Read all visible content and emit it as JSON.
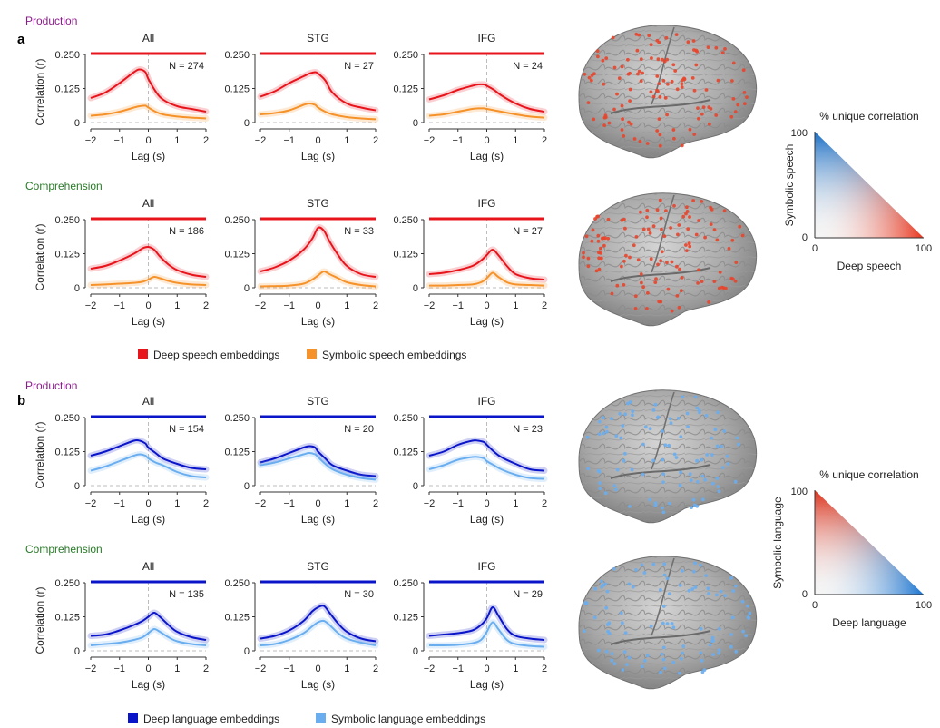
{
  "panels": [
    {
      "label": "a",
      "rows": [
        {
          "condition": "Production"
        },
        {
          "condition": "Comprehension"
        }
      ],
      "legend": [
        {
          "name": "Deep speech embeddings",
          "color": "#e8141c"
        },
        {
          "name": "Symbolic speech embeddings",
          "color": "#f5922a"
        }
      ],
      "triangle": {
        "title": "% unique correlation",
        "xlabel": "Deep speech",
        "ylabel": "Symbolic speech",
        "ticks": [
          "0",
          "100",
          "0",
          "100"
        ],
        "color_x": "#e8341c",
        "color_y": "#1a74d0"
      }
    },
    {
      "label": "b",
      "rows": [
        {
          "condition": "Production"
        },
        {
          "condition": "Comprehension"
        }
      ],
      "legend": [
        {
          "name": "Deep language embeddings",
          "color": "#0a14c8"
        },
        {
          "name": "Symbolic language embeddings",
          "color": "#6aaef0"
        }
      ],
      "triangle": {
        "title": "% unique correlation",
        "xlabel": "Deep language",
        "ylabel": "Symbolic language",
        "ticks": [
          "0",
          "100",
          "0",
          "100"
        ],
        "color_x": "#1a74d0",
        "color_y": "#e8341c"
      }
    }
  ],
  "colors": {
    "production": "#8b1a8b",
    "comprehension": "#2a7a2a"
  },
  "chart_data": [
    {
      "type": "line",
      "panel": "a",
      "condition": "Production",
      "title": "All",
      "n_label": "N = 274",
      "xlabel": "Lag (s)",
      "ylabel": "Correlation (r)",
      "xlim": [
        -2,
        2
      ],
      "ylim": [
        0,
        0.25
      ],
      "xticks": [
        "-2",
        "-1",
        "0",
        "1",
        "2"
      ],
      "yticks": [
        "0",
        "0.125",
        "0.250"
      ],
      "x": [
        -2,
        -1.5,
        -1,
        -0.5,
        -0.3,
        -0.1,
        0,
        0.25,
        0.5,
        1,
        1.5,
        2
      ],
      "series": [
        {
          "name": "Deep speech embeddings",
          "color": "#e8141c",
          "values": [
            0.09,
            0.11,
            0.145,
            0.185,
            0.195,
            0.185,
            0.16,
            0.115,
            0.085,
            0.06,
            0.05,
            0.04
          ]
        },
        {
          "name": "Symbolic speech embeddings",
          "color": "#f5922a",
          "values": [
            0.025,
            0.03,
            0.04,
            0.055,
            0.06,
            0.062,
            0.055,
            0.04,
            0.03,
            0.022,
            0.018,
            0.015
          ]
        }
      ],
      "sig_bar": {
        "from": -2,
        "to": 2,
        "color": "#e8141c"
      }
    },
    {
      "type": "line",
      "panel": "a",
      "condition": "Production",
      "title": "STG",
      "n_label": "N = 27",
      "xlabel": "Lag (s)",
      "ylabel": "",
      "xlim": [
        -2,
        2
      ],
      "ylim": [
        0,
        0.25
      ],
      "xticks": [
        "-2",
        "-1",
        "0",
        "1",
        "2"
      ],
      "yticks": [
        "0",
        "0.125",
        "0.250"
      ],
      "x": [
        -2,
        -1.5,
        -1,
        -0.5,
        -0.3,
        -0.1,
        0,
        0.25,
        0.5,
        1,
        1.5,
        2
      ],
      "series": [
        {
          "name": "Deep speech embeddings",
          "color": "#e8141c",
          "values": [
            0.095,
            0.115,
            0.145,
            0.17,
            0.18,
            0.185,
            0.18,
            0.155,
            0.11,
            0.07,
            0.055,
            0.045
          ]
        },
        {
          "name": "Symbolic speech embeddings",
          "color": "#f5922a",
          "values": [
            0.03,
            0.035,
            0.045,
            0.065,
            0.07,
            0.065,
            0.055,
            0.04,
            0.03,
            0.02,
            0.015,
            0.012
          ]
        }
      ],
      "sig_bar": {
        "from": -2,
        "to": 2,
        "color": "#e8141c"
      }
    },
    {
      "type": "line",
      "panel": "a",
      "condition": "Production",
      "title": "IFG",
      "n_label": "N = 24",
      "xlabel": "Lag (s)",
      "ylabel": "",
      "xlim": [
        -2,
        2
      ],
      "ylim": [
        0,
        0.25
      ],
      "xticks": [
        "-2",
        "-1",
        "0",
        "1",
        "2"
      ],
      "yticks": [
        "0",
        "0.125",
        "0.250"
      ],
      "x": [
        -2,
        -1.5,
        -1,
        -0.5,
        -0.3,
        -0.1,
        0,
        0.25,
        0.5,
        1,
        1.5,
        2
      ],
      "series": [
        {
          "name": "Deep speech embeddings",
          "color": "#e8141c",
          "values": [
            0.085,
            0.1,
            0.12,
            0.135,
            0.14,
            0.14,
            0.135,
            0.12,
            0.1,
            0.07,
            0.05,
            0.04
          ]
        },
        {
          "name": "Symbolic speech embeddings",
          "color": "#f5922a",
          "values": [
            0.025,
            0.03,
            0.04,
            0.05,
            0.052,
            0.052,
            0.05,
            0.045,
            0.04,
            0.03,
            0.022,
            0.018
          ]
        }
      ],
      "sig_bar": {
        "from": -2,
        "to": 2,
        "color": "#e8141c"
      }
    },
    {
      "type": "line",
      "panel": "a",
      "condition": "Comprehension",
      "title": "All",
      "n_label": "N = 186",
      "xlabel": "Lag (s)",
      "ylabel": "Correlation (r)",
      "xlim": [
        -2,
        2
      ],
      "ylim": [
        0,
        0.25
      ],
      "xticks": [
        "-2",
        "-1",
        "0",
        "1",
        "2"
      ],
      "yticks": [
        "0",
        "0.125",
        "0.250"
      ],
      "x": [
        -2,
        -1.5,
        -1,
        -0.5,
        -0.2,
        0,
        0.2,
        0.4,
        0.7,
        1,
        1.5,
        2
      ],
      "series": [
        {
          "name": "Deep speech embeddings",
          "color": "#e8141c",
          "values": [
            0.07,
            0.08,
            0.1,
            0.125,
            0.145,
            0.15,
            0.14,
            0.115,
            0.085,
            0.065,
            0.048,
            0.04
          ]
        },
        {
          "name": "Symbolic speech embeddings",
          "color": "#f5922a",
          "values": [
            0.01,
            0.012,
            0.015,
            0.018,
            0.022,
            0.03,
            0.04,
            0.035,
            0.025,
            0.018,
            0.012,
            0.01
          ]
        }
      ],
      "sig_bar": {
        "from": -2,
        "to": 2,
        "color": "#e8141c"
      }
    },
    {
      "type": "line",
      "panel": "a",
      "condition": "Comprehension",
      "title": "STG",
      "n_label": "N = 33",
      "xlabel": "Lag (s)",
      "ylabel": "",
      "xlim": [
        -2,
        2
      ],
      "ylim": [
        0,
        0.25
      ],
      "xticks": [
        "-2",
        "-1",
        "0",
        "1",
        "2"
      ],
      "yticks": [
        "0",
        "0.125",
        "0.250"
      ],
      "x": [
        -2,
        -1.5,
        -1,
        -0.5,
        -0.2,
        0,
        0.2,
        0.4,
        0.7,
        1,
        1.5,
        2
      ],
      "series": [
        {
          "name": "Deep speech embeddings",
          "color": "#e8141c",
          "values": [
            0.06,
            0.075,
            0.1,
            0.14,
            0.18,
            0.22,
            0.21,
            0.17,
            0.12,
            0.08,
            0.05,
            0.04
          ]
        },
        {
          "name": "Symbolic speech embeddings",
          "color": "#f5922a",
          "values": [
            0.005,
            0.006,
            0.008,
            0.015,
            0.03,
            0.045,
            0.06,
            0.05,
            0.035,
            0.02,
            0.01,
            0.005
          ]
        }
      ],
      "sig_bar": {
        "from": -2,
        "to": 2,
        "color": "#e8141c"
      }
    },
    {
      "type": "line",
      "panel": "a",
      "condition": "Comprehension",
      "title": "IFG",
      "n_label": "N = 27",
      "xlabel": "Lag (s)",
      "ylabel": "",
      "xlim": [
        -2,
        2
      ],
      "ylim": [
        0,
        0.25
      ],
      "xticks": [
        "-2",
        "-1",
        "0",
        "1",
        "2"
      ],
      "yticks": [
        "0",
        "0.125",
        "0.250"
      ],
      "x": [
        -2,
        -1.5,
        -1,
        -0.5,
        -0.2,
        0,
        0.2,
        0.4,
        0.7,
        1,
        1.5,
        2
      ],
      "series": [
        {
          "name": "Deep speech embeddings",
          "color": "#e8141c",
          "values": [
            0.05,
            0.055,
            0.065,
            0.08,
            0.1,
            0.12,
            0.14,
            0.12,
            0.08,
            0.05,
            0.035,
            0.03
          ]
        },
        {
          "name": "Symbolic speech embeddings",
          "color": "#f5922a",
          "values": [
            0.008,
            0.008,
            0.01,
            0.012,
            0.02,
            0.035,
            0.055,
            0.04,
            0.02,
            0.012,
            0.01,
            0.008
          ]
        }
      ],
      "sig_bar": {
        "from": -2,
        "to": 2,
        "color": "#e8141c"
      }
    },
    {
      "type": "line",
      "panel": "b",
      "condition": "Production",
      "title": "All",
      "n_label": "N = 154",
      "xlabel": "Lag (s)",
      "ylabel": "Correlation (r)",
      "xlim": [
        -2,
        2
      ],
      "ylim": [
        0,
        0.25
      ],
      "xticks": [
        "-2",
        "-1",
        "0",
        "1",
        "2"
      ],
      "yticks": [
        "0",
        "0.125",
        "0.250"
      ],
      "x": [
        -2,
        -1.5,
        -1,
        -0.5,
        -0.3,
        -0.1,
        0,
        0.25,
        0.5,
        1,
        1.5,
        2
      ],
      "series": [
        {
          "name": "Deep language embeddings",
          "color": "#0a14c8",
          "values": [
            0.11,
            0.125,
            0.145,
            0.165,
            0.165,
            0.155,
            0.14,
            0.12,
            0.1,
            0.08,
            0.065,
            0.06
          ]
        },
        {
          "name": "Symbolic language embeddings",
          "color": "#6aaef0",
          "values": [
            0.055,
            0.07,
            0.09,
            0.11,
            0.115,
            0.11,
            0.1,
            0.085,
            0.075,
            0.05,
            0.035,
            0.03
          ]
        }
      ],
      "sig_bar": {
        "from": -2,
        "to": 2,
        "color": "#0a14c8"
      }
    },
    {
      "type": "line",
      "panel": "b",
      "condition": "Production",
      "title": "STG",
      "n_label": "N = 20",
      "xlabel": "Lag (s)",
      "ylabel": "",
      "xlim": [
        -2,
        2
      ],
      "ylim": [
        0,
        0.25
      ],
      "xticks": [
        "-2",
        "-1",
        "0",
        "1",
        "2"
      ],
      "yticks": [
        "0",
        "0.125",
        "0.250"
      ],
      "x": [
        -2,
        -1.5,
        -1,
        -0.5,
        -0.3,
        -0.1,
        0,
        0.25,
        0.5,
        1,
        1.5,
        2
      ],
      "series": [
        {
          "name": "Deep language embeddings",
          "color": "#0a14c8",
          "values": [
            0.085,
            0.1,
            0.12,
            0.14,
            0.145,
            0.14,
            0.125,
            0.1,
            0.075,
            0.055,
            0.04,
            0.035
          ]
        },
        {
          "name": "Symbolic language embeddings",
          "color": "#6aaef0",
          "values": [
            0.075,
            0.085,
            0.1,
            0.115,
            0.12,
            0.115,
            0.105,
            0.08,
            0.06,
            0.04,
            0.028,
            0.022
          ]
        }
      ],
      "sig_bar": {
        "from": -2,
        "to": 2,
        "color": "#0a14c8"
      }
    },
    {
      "type": "line",
      "panel": "b",
      "condition": "Production",
      "title": "IFG",
      "n_label": "N = 23",
      "xlabel": "Lag (s)",
      "ylabel": "",
      "xlim": [
        -2,
        2
      ],
      "ylim": [
        0,
        0.25
      ],
      "xticks": [
        "-2",
        "-1",
        "0",
        "1",
        "2"
      ],
      "yticks": [
        "0",
        "0.125",
        "0.250"
      ],
      "x": [
        -2,
        -1.5,
        -1,
        -0.5,
        -0.3,
        -0.1,
        0,
        0.25,
        0.5,
        1,
        1.5,
        2
      ],
      "series": [
        {
          "name": "Deep language embeddings",
          "color": "#0a14c8",
          "values": [
            0.11,
            0.125,
            0.15,
            0.165,
            0.165,
            0.16,
            0.15,
            0.125,
            0.105,
            0.08,
            0.06,
            0.055
          ]
        },
        {
          "name": "Symbolic language embeddings",
          "color": "#6aaef0",
          "values": [
            0.06,
            0.075,
            0.095,
            0.105,
            0.105,
            0.1,
            0.09,
            0.075,
            0.06,
            0.04,
            0.028,
            0.025
          ]
        }
      ],
      "sig_bar": {
        "from": -2,
        "to": 2,
        "color": "#0a14c8"
      }
    },
    {
      "type": "line",
      "panel": "b",
      "condition": "Comprehension",
      "title": "All",
      "n_label": "N = 135",
      "xlabel": "Lag (s)",
      "ylabel": "Correlation (r)",
      "xlim": [
        -2,
        2
      ],
      "ylim": [
        0,
        0.25
      ],
      "xticks": [
        "-2",
        "-1",
        "0",
        "1",
        "2"
      ],
      "yticks": [
        "0",
        "0.125",
        "0.250"
      ],
      "x": [
        -2,
        -1.5,
        -1,
        -0.5,
        -0.2,
        0,
        0.2,
        0.4,
        0.7,
        1,
        1.5,
        2
      ],
      "series": [
        {
          "name": "Deep language embeddings",
          "color": "#0a14c8",
          "values": [
            0.055,
            0.06,
            0.075,
            0.095,
            0.11,
            0.125,
            0.14,
            0.125,
            0.095,
            0.07,
            0.05,
            0.04
          ]
        },
        {
          "name": "Symbolic language embeddings",
          "color": "#6aaef0",
          "values": [
            0.02,
            0.025,
            0.03,
            0.04,
            0.05,
            0.065,
            0.08,
            0.07,
            0.05,
            0.035,
            0.025,
            0.02
          ]
        }
      ],
      "sig_bar": {
        "from": -2,
        "to": 2,
        "color": "#0a14c8"
      }
    },
    {
      "type": "line",
      "panel": "b",
      "condition": "Comprehension",
      "title": "STG",
      "n_label": "N = 30",
      "xlabel": "Lag (s)",
      "ylabel": "",
      "xlim": [
        -2,
        2
      ],
      "ylim": [
        0,
        0.25
      ],
      "xticks": [
        "-2",
        "-1",
        "0",
        "1",
        "2"
      ],
      "yticks": [
        "0",
        "0.125",
        "0.250"
      ],
      "x": [
        -2,
        -1.5,
        -1,
        -0.5,
        -0.2,
        0,
        0.2,
        0.4,
        0.7,
        1,
        1.5,
        2
      ],
      "series": [
        {
          "name": "Deep language embeddings",
          "color": "#0a14c8",
          "values": [
            0.045,
            0.055,
            0.075,
            0.11,
            0.145,
            0.16,
            0.165,
            0.14,
            0.1,
            0.07,
            0.045,
            0.035
          ]
        },
        {
          "name": "Symbolic language embeddings",
          "color": "#6aaef0",
          "values": [
            0.02,
            0.025,
            0.04,
            0.065,
            0.09,
            0.105,
            0.11,
            0.095,
            0.065,
            0.045,
            0.03,
            0.02
          ]
        }
      ],
      "sig_bar": {
        "from": -2,
        "to": 2,
        "color": "#0a14c8"
      }
    },
    {
      "type": "line",
      "panel": "b",
      "condition": "Comprehension",
      "title": "IFG",
      "n_label": "N = 29",
      "xlabel": "Lag (s)",
      "ylabel": "",
      "xlim": [
        -2,
        2
      ],
      "ylim": [
        0,
        0.25
      ],
      "xticks": [
        "-2",
        "-1",
        "0",
        "1",
        "2"
      ],
      "yticks": [
        "0",
        "0.125",
        "0.250"
      ],
      "x": [
        -2,
        -1.5,
        -1,
        -0.5,
        -0.2,
        0,
        0.2,
        0.4,
        0.7,
        1,
        1.5,
        2
      ],
      "series": [
        {
          "name": "Deep language embeddings",
          "color": "#0a14c8",
          "values": [
            0.055,
            0.06,
            0.065,
            0.075,
            0.095,
            0.12,
            0.16,
            0.13,
            0.08,
            0.055,
            0.045,
            0.04
          ]
        },
        {
          "name": "Symbolic language embeddings",
          "color": "#6aaef0",
          "values": [
            0.02,
            0.02,
            0.022,
            0.028,
            0.04,
            0.07,
            0.105,
            0.08,
            0.04,
            0.025,
            0.018,
            0.015
          ]
        }
      ],
      "sig_bar": {
        "from": -2,
        "to": 2,
        "color": "#0a14c8"
      }
    }
  ]
}
